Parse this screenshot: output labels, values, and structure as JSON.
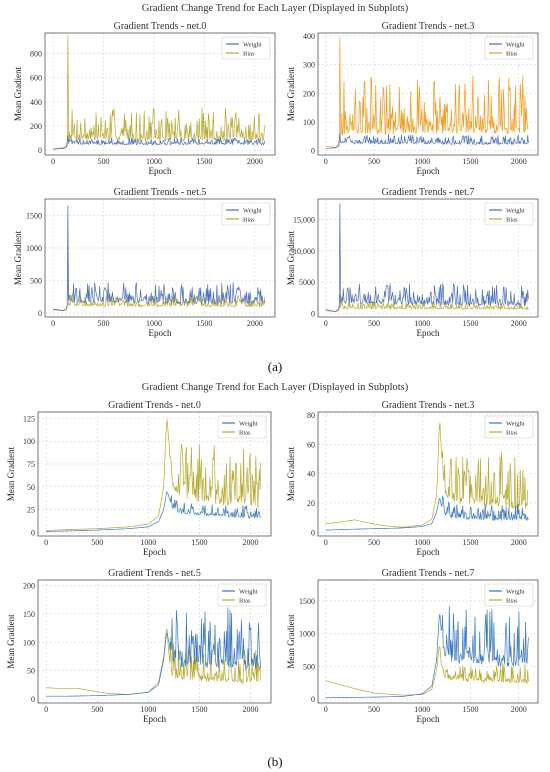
{
  "chart_data": [
    {
      "type": "line",
      "figure_group": "a",
      "group_title": "Gradient Change Trend for Each Layer (Displayed in Subplots)",
      "title": "Gradient Trends - net.0",
      "xlabel": "Epoch",
      "ylabel": "Mean Gradient",
      "xlim": [
        -80,
        2200
      ],
      "ylim": [
        -40,
        970
      ],
      "xticks": [
        0,
        500,
        1000,
        1500,
        2000
      ],
      "yticks": [
        0,
        200,
        400,
        600,
        800
      ],
      "ytick_labels": [
        "0",
        "200",
        "400",
        "600",
        "800"
      ],
      "grid": true,
      "legend_position": "top-right",
      "series": [
        {
          "name": "Weight",
          "color": "#4a6fbf",
          "x": [
            0,
            100,
            130,
            150,
            200,
            500,
            1000,
            1500,
            2000,
            2100
          ],
          "values": [
            8,
            15,
            20,
            60,
            55,
            52,
            50,
            52,
            50,
            48
          ],
          "spike": [
            150,
            120
          ],
          "noise_amp": 25
        },
        {
          "name": "Bias",
          "color": "#b8a92e",
          "x": [
            0,
            100,
            130,
            150,
            200,
            500,
            1000,
            1500,
            2000,
            2100
          ],
          "values": [
            10,
            20,
            30,
            120,
            110,
            105,
            100,
            100,
            95,
            95
          ],
          "spike": [
            150,
            950
          ],
          "noise_amp": 120
        }
      ]
    },
    {
      "type": "line",
      "figure_group": "a",
      "title": "Gradient Trends - net.3",
      "xlabel": "Epoch",
      "ylabel": "Mean Gradient",
      "xlim": [
        -80,
        2200
      ],
      "ylim": [
        -15,
        410
      ],
      "xticks": [
        0,
        500,
        1000,
        1500,
        2000
      ],
      "yticks": [
        0,
        100,
        200,
        300,
        400
      ],
      "ytick_labels": [
        "0",
        "100",
        "200",
        "300",
        "400"
      ],
      "grid": true,
      "legend_position": "top-right",
      "series": [
        {
          "name": "Weight",
          "color": "#4a6fbf",
          "x": [
            0,
            100,
            130,
            150,
            200,
            500,
            1000,
            1500,
            2000,
            2100
          ],
          "values": [
            8,
            10,
            14,
            30,
            28,
            27,
            26,
            25,
            25,
            24
          ],
          "spike": [
            150,
            60
          ],
          "noise_amp": 15
        },
        {
          "name": "Bias",
          "color": "#f39a1c",
          "x": [
            0,
            100,
            130,
            150,
            200,
            500,
            1000,
            1500,
            2000,
            2100
          ],
          "values": [
            15,
            12,
            20,
            70,
            75,
            78,
            80,
            80,
            78,
            76
          ],
          "spike": [
            150,
            395
          ],
          "noise_amp": 90
        }
      ]
    },
    {
      "type": "line",
      "figure_group": "a",
      "title": "Gradient Trends - net.5",
      "xlabel": "Epoch",
      "ylabel": "Mean Gradient",
      "xlim": [
        -80,
        2200
      ],
      "ylim": [
        -60,
        1750
      ],
      "xticks": [
        0,
        500,
        1000,
        1500,
        2000
      ],
      "yticks": [
        0,
        500,
        1000,
        1500
      ],
      "ytick_labels": [
        "0",
        "500",
        "1000",
        "1500"
      ],
      "grid": true,
      "legend_position": "top-right",
      "series": [
        {
          "name": "Weight",
          "color": "#4a6fbf",
          "x": [
            0,
            100,
            130,
            150,
            200,
            500,
            1000,
            1500,
            2000,
            2100
          ],
          "values": [
            60,
            40,
            60,
            200,
            190,
            185,
            180,
            175,
            170,
            168
          ],
          "spike": [
            150,
            1650
          ],
          "noise_amp": 140
        },
        {
          "name": "Bias",
          "color": "#b8a92e",
          "x": [
            0,
            100,
            130,
            150,
            200,
            500,
            1000,
            1500,
            2000,
            2100
          ],
          "values": [
            50,
            35,
            50,
            130,
            125,
            120,
            118,
            115,
            112,
            110
          ],
          "spike": [
            150,
            800
          ],
          "noise_amp": 80
        }
      ]
    },
    {
      "type": "line",
      "figure_group": "a",
      "title": "Gradient Trends - net.7",
      "xlabel": "Epoch",
      "ylabel": "Mean Gradient",
      "xlim": [
        -80,
        2200
      ],
      "ylim": [
        -600,
        18300
      ],
      "xticks": [
        0,
        500,
        1000,
        1500,
        2000
      ],
      "yticks": [
        0,
        5000,
        10000,
        15000
      ],
      "ytick_labels": [
        "0",
        "5000",
        "10,000",
        "15,000"
      ],
      "grid": true,
      "legend_position": "top-right",
      "series": [
        {
          "name": "Weight",
          "color": "#4a6fbf",
          "x": [
            0,
            100,
            130,
            150,
            200,
            500,
            1000,
            1500,
            2000,
            2100
          ],
          "values": [
            600,
            300,
            600,
            2000,
            1900,
            1800,
            1700,
            1600,
            1500,
            1450
          ],
          "spike": [
            150,
            17600
          ],
          "noise_amp": 1500
        },
        {
          "name": "Bias",
          "color": "#b8a92e",
          "x": [
            0,
            100,
            130,
            150,
            200,
            500,
            1000,
            1500,
            2000,
            2100
          ],
          "values": [
            400,
            250,
            400,
            900,
            850,
            800,
            780,
            760,
            740,
            720
          ],
          "spike": [
            150,
            3000
          ],
          "noise_amp": 500
        }
      ]
    },
    {
      "type": "line",
      "figure_group": "b",
      "group_title": "Gradient Change Trend for Each Layer (Displayed in Subplots)",
      "title": "Gradient Trends - net.0",
      "xlabel": "Epoch",
      "ylabel": "Mean Gradient",
      "xlim": [
        -80,
        2200
      ],
      "ylim": [
        -4,
        132
      ],
      "xticks": [
        0,
        500,
        1000,
        1500,
        2000
      ],
      "yticks": [
        0,
        25,
        50,
        75,
        100,
        125
      ],
      "ytick_labels": [
        "0",
        "25",
        "50",
        "75",
        "100",
        "125"
      ],
      "grid": true,
      "legend_position": "top-right",
      "series": [
        {
          "name": "Weight",
          "color": "#3a78c4",
          "x": [
            0,
            200,
            500,
            800,
            1000,
            1100,
            1150,
            1180,
            1200,
            1230,
            1300,
            1500,
            1800,
            2100
          ],
          "values": [
            1,
            1.5,
            2.5,
            4,
            6,
            12,
            25,
            45,
            40,
            28,
            22,
            20,
            18,
            16
          ],
          "noise_from": 1200,
          "noise_amp": 6
        },
        {
          "name": "Bias",
          "color": "#b8a92e",
          "x": [
            0,
            200,
            500,
            800,
            1000,
            1100,
            1150,
            1180,
            1200,
            1230,
            1300,
            1500,
            1800,
            2100
          ],
          "values": [
            2,
            3,
            4,
            6,
            9,
            18,
            50,
            128,
            100,
            55,
            45,
            40,
            35,
            32
          ],
          "noise_from": 1200,
          "noise_amp": 28
        }
      ]
    },
    {
      "type": "line",
      "figure_group": "b",
      "title": "Gradient Trends - net.3",
      "xlabel": "Epoch",
      "ylabel": "Mean Gradient",
      "xlim": [
        -80,
        2200
      ],
      "ylim": [
        -2.5,
        82
      ],
      "xticks": [
        0,
        500,
        1000,
        1500,
        2000
      ],
      "yticks": [
        0,
        20,
        40,
        60,
        80
      ],
      "ytick_labels": [
        "0",
        "20",
        "40",
        "60",
        "80"
      ],
      "grid": true,
      "legend_position": "top-right",
      "series": [
        {
          "name": "Weight",
          "color": "#3a78c4",
          "x": [
            0,
            200,
            500,
            800,
            1000,
            1100,
            1150,
            1180,
            1200,
            1230,
            1300,
            1500,
            1800,
            2100
          ],
          "values": [
            1.5,
            2,
            2.5,
            3,
            4,
            6,
            14,
            24,
            18,
            13,
            11,
            10,
            9,
            9
          ],
          "noise_from": 1200,
          "noise_amp": 5
        },
        {
          "name": "Bias",
          "color": "#b8a92e",
          "x": [
            0,
            100,
            300,
            400,
            600,
            800,
            1000,
            1100,
            1150,
            1180,
            1200,
            1230,
            1300,
            1500,
            1800,
            2100
          ],
          "values": [
            6,
            6.5,
            8.5,
            7,
            4.5,
            3.5,
            5,
            9,
            25,
            78,
            55,
            30,
            25,
            22,
            20,
            19
          ],
          "noise_from": 1200,
          "noise_amp": 18
        }
      ]
    },
    {
      "type": "line",
      "figure_group": "b",
      "title": "Gradient Trends - net.5",
      "xlabel": "Epoch",
      "ylabel": "Mean Gradient",
      "xlim": [
        -80,
        2200
      ],
      "ylim": [
        -7,
        210
      ],
      "xticks": [
        0,
        500,
        1000,
        1500,
        2000
      ],
      "yticks": [
        0,
        50,
        100,
        150,
        200
      ],
      "ytick_labels": [
        "0",
        "50",
        "100",
        "150",
        "200"
      ],
      "grid": true,
      "legend_position": "top-right",
      "series": [
        {
          "name": "Weight",
          "color": "#3a78c4",
          "x": [
            0,
            200,
            500,
            800,
            1000,
            1100,
            1150,
            1180,
            1200,
            1230,
            1300,
            1500,
            1800,
            2100
          ],
          "values": [
            5,
            5,
            6,
            8,
            12,
            25,
            70,
            120,
            100,
            70,
            60,
            65,
            65,
            60
          ],
          "noise_from": 1200,
          "noise_amp": 45
        },
        {
          "name": "Bias",
          "color": "#b8a92e",
          "x": [
            0,
            100,
            300,
            400,
            600,
            800,
            1000,
            1100,
            1150,
            1180,
            1200,
            1230,
            1300,
            1500,
            1800,
            2100
          ],
          "values": [
            20,
            19,
            19,
            16,
            10,
            8,
            12,
            30,
            75,
            130,
            80,
            45,
            40,
            38,
            35,
            33
          ],
          "noise_from": 1200,
          "noise_amp": 28
        }
      ]
    },
    {
      "type": "line",
      "figure_group": "b",
      "title": "Gradient Trends - net.7",
      "xlabel": "Epoch",
      "ylabel": "Mean Gradient",
      "xlim": [
        -80,
        2200
      ],
      "ylim": [
        -60,
        1820
      ],
      "xticks": [
        0,
        500,
        1000,
        1500,
        2000
      ],
      "yticks": [
        0,
        500,
        1000,
        1500
      ],
      "ytick_labels": [
        "0",
        "500",
        "1000",
        "1500"
      ],
      "grid": true,
      "legend_position": "top-right",
      "series": [
        {
          "name": "Weight",
          "color": "#3a78c4",
          "x": [
            0,
            200,
            500,
            800,
            1000,
            1100,
            1150,
            1180,
            1200,
            1230,
            1300,
            1500,
            1800,
            2100
          ],
          "values": [
            20,
            25,
            30,
            40,
            80,
            200,
            600,
            1350,
            1000,
            750,
            650,
            620,
            600,
            580
          ],
          "noise_from": 1200,
          "noise_amp": 420
        },
        {
          "name": "Bias",
          "color": "#b8a92e",
          "x": [
            0,
            100,
            300,
            500,
            800,
            1000,
            1100,
            1150,
            1180,
            1200,
            1230,
            1300,
            1500,
            1800,
            2100
          ],
          "values": [
            280,
            240,
            160,
            90,
            60,
            70,
            150,
            450,
            850,
            500,
            350,
            320,
            300,
            280,
            270
          ],
          "noise_from": 1200,
          "noise_amp": 150
        }
      ]
    }
  ],
  "captions": {
    "a": "(a)",
    "b": "(b)"
  }
}
